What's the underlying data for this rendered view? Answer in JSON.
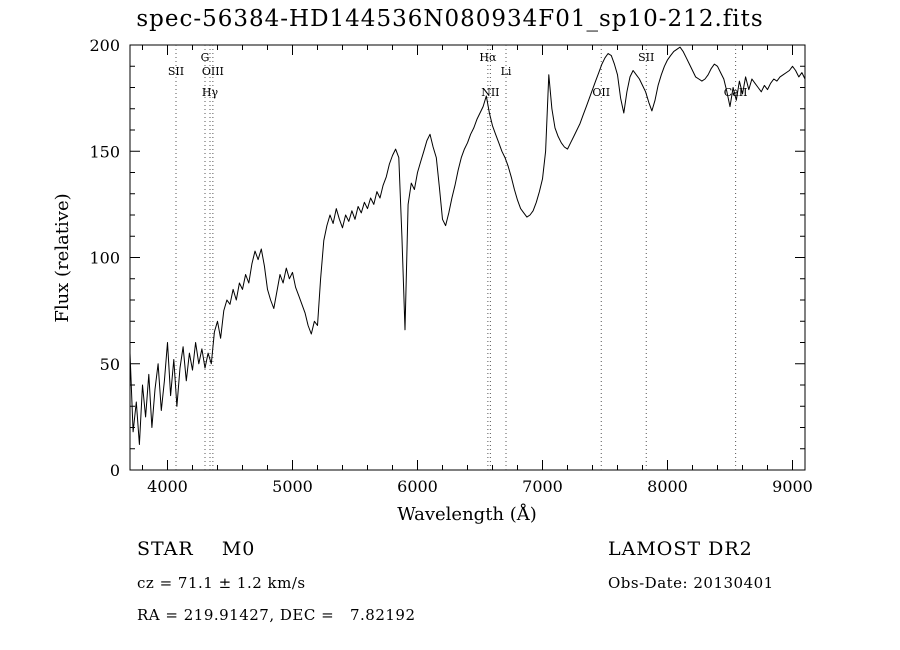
{
  "title": "spec-56384-HD144536N080934F01_sp10-212.fits",
  "footer": {
    "object_type": "STAR    M0",
    "survey": "LAMOST DR2",
    "cz": "cz = 71.1 ± 1.2 km/s",
    "obs_date": "Obs-Date: 20130401",
    "coords": "RA = 219.91427, DEC =   7.82192"
  },
  "chart_data": {
    "type": "line",
    "title": "spec-56384-HD144536N080934F01_sp10-212.fits",
    "xlabel": "Wavelength (Å)",
    "ylabel": "Flux (relative)",
    "xlim": [
      3700,
      9100
    ],
    "ylim": [
      0,
      200
    ],
    "xticks": [
      4000,
      5000,
      6000,
      7000,
      8000,
      9000
    ],
    "yticks": [
      0,
      50,
      100,
      150,
      200
    ],
    "grid": false,
    "legend": "none",
    "line_color": "#000000",
    "marker_line_color": "#555555",
    "line_markers": [
      {
        "label": "SII",
        "wavelength": 4068,
        "row": 1
      },
      {
        "label": "G",
        "wavelength": 4300,
        "row": 0
      },
      {
        "label": "OIII",
        "wavelength": 4363,
        "row": 1
      },
      {
        "label": "Hγ",
        "wavelength": 4340,
        "row": 2
      },
      {
        "label": "Hα",
        "wavelength": 6563,
        "row": 0
      },
      {
        "label": "NII",
        "wavelength": 6583,
        "row": 2
      },
      {
        "label": "Li",
        "wavelength": 6708,
        "row": 1
      },
      {
        "label": "OII",
        "wavelength": 7470,
        "row": 2
      },
      {
        "label": "SII",
        "wavelength": 7830,
        "row": 0
      },
      {
        "label": "CaII",
        "wavelength": 8545,
        "row": 2
      }
    ],
    "spectrum": {
      "x_start": 3700,
      "x_step": 25,
      "flux": [
        55,
        18,
        32,
        12,
        40,
        25,
        45,
        20,
        38,
        50,
        28,
        42,
        60,
        35,
        52,
        30,
        48,
        58,
        42,
        55,
        47,
        60,
        50,
        57,
        48,
        55,
        50,
        65,
        70,
        62,
        75,
        80,
        78,
        85,
        80,
        88,
        85,
        92,
        88,
        97,
        103,
        99,
        104,
        96,
        85,
        80,
        76,
        84,
        92,
        88,
        95,
        90,
        93,
        86,
        82,
        78,
        74,
        68,
        64,
        70,
        68,
        90,
        108,
        115,
        120,
        116,
        123,
        118,
        114,
        120,
        117,
        122,
        118,
        124,
        121,
        126,
        123,
        128,
        125,
        131,
        128,
        134,
        138,
        144,
        148,
        151,
        147,
        110,
        66,
        125,
        135,
        132,
        140,
        145,
        150,
        155,
        158,
        152,
        147,
        133,
        118,
        115,
        121,
        128,
        134,
        141,
        147,
        151,
        154,
        158,
        161,
        165,
        168,
        171,
        176,
        168,
        162,
        158,
        154,
        150,
        147,
        143,
        138,
        132,
        127,
        123,
        121,
        119,
        120,
        122,
        126,
        131,
        137,
        150,
        186,
        170,
        161,
        157,
        154,
        152,
        151,
        154,
        157,
        160,
        163,
        167,
        171,
        175,
        179,
        183,
        187,
        191,
        194,
        196,
        195,
        191,
        186,
        175,
        168,
        178,
        185,
        188,
        186,
        184,
        181,
        178,
        173,
        169,
        174,
        181,
        186,
        190,
        193,
        195,
        197,
        198,
        199,
        197,
        194,
        191,
        188,
        185,
        184,
        183,
        184,
        186,
        189,
        191,
        190,
        187,
        184,
        178,
        171,
        180,
        174,
        183,
        177,
        185,
        179,
        184,
        182,
        180,
        178,
        181,
        179,
        182,
        184,
        183,
        185,
        186,
        187,
        188,
        190,
        188,
        185,
        187,
        184
      ]
    }
  }
}
